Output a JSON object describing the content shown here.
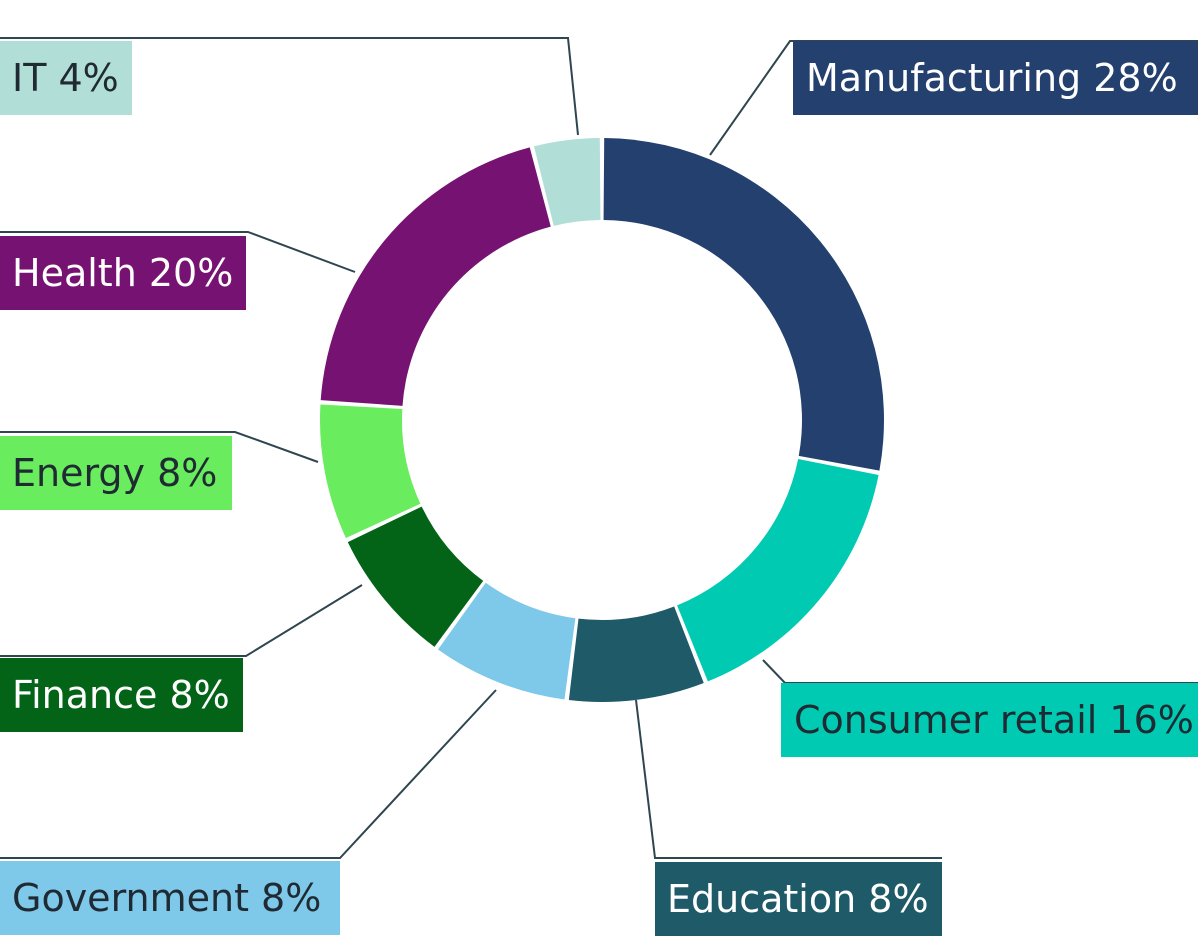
{
  "chart_data": {
    "type": "pie",
    "donut": true,
    "title": "",
    "slices": [
      {
        "name": "Manufacturing",
        "value": 28,
        "label": "Manufacturing 28%",
        "color": "#23406e",
        "text_color": "#ffffff"
      },
      {
        "name": "Consumer retail",
        "value": 16,
        "label": "Consumer retail 16%",
        "color": "#00cbb2",
        "text_color": "#1f2a33"
      },
      {
        "name": "Education",
        "value": 8,
        "label": "Education 8%",
        "color": "#1e5a68",
        "text_color": "#ffffff"
      },
      {
        "name": "Government",
        "value": 8,
        "label": "Government 8%",
        "color": "#7ec8ea",
        "text_color": "#1f2a33"
      },
      {
        "name": "Finance",
        "value": 8,
        "label": "Finance 8%",
        "color": "#036417",
        "text_color": "#ffffff"
      },
      {
        "name": "Energy",
        "value": 8,
        "label": "Energy 8%",
        "color": "#69ec5d",
        "text_color": "#1f2a33"
      },
      {
        "name": "Health",
        "value": 20,
        "label": "Health 20%",
        "color": "#761271",
        "text_color": "#ffffff"
      },
      {
        "name": "IT",
        "value": 4,
        "label": "IT 4%",
        "color": "#b1ded6",
        "text_color": "#1f2a33"
      }
    ],
    "leader_line_color": "#2f4650",
    "legend": "none"
  }
}
